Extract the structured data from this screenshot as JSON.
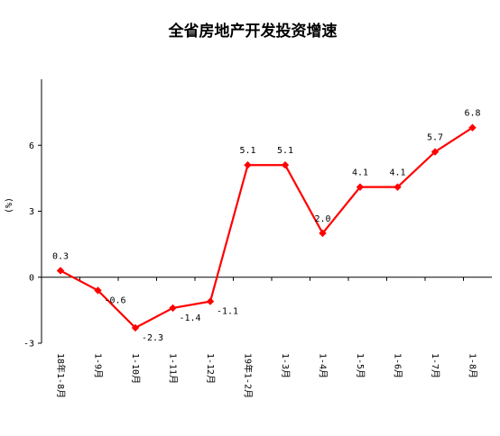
{
  "chart_data": {
    "type": "line",
    "title": "全省房地产开发投资增速",
    "ylabel": "(%)",
    "xlabel": "",
    "categories": [
      "18年1-8月",
      "1-9月",
      "1-10月",
      "1-11月",
      "1-12月",
      "19年1-2月",
      "1-3月",
      "1-4月",
      "1-5月",
      "1-6月",
      "1-7月",
      "1-8月"
    ],
    "values": [
      0.3,
      -0.6,
      -2.3,
      -1.4,
      -1.1,
      5.1,
      5.1,
      2.0,
      4.1,
      4.1,
      5.7,
      6.8
    ],
    "data_labels": [
      "0.3",
      "-0.6",
      "-2.3",
      "-1.4",
      "-1.1",
      "5.1",
      "5.1",
      "2.0",
      "4.1",
      "4.1",
      "5.7",
      "6.8"
    ],
    "ylim": [
      -3,
      9
    ],
    "yticks": [
      -3,
      0,
      3,
      6
    ],
    "grid": false,
    "legend": "none",
    "line_color": "#ff0000"
  }
}
